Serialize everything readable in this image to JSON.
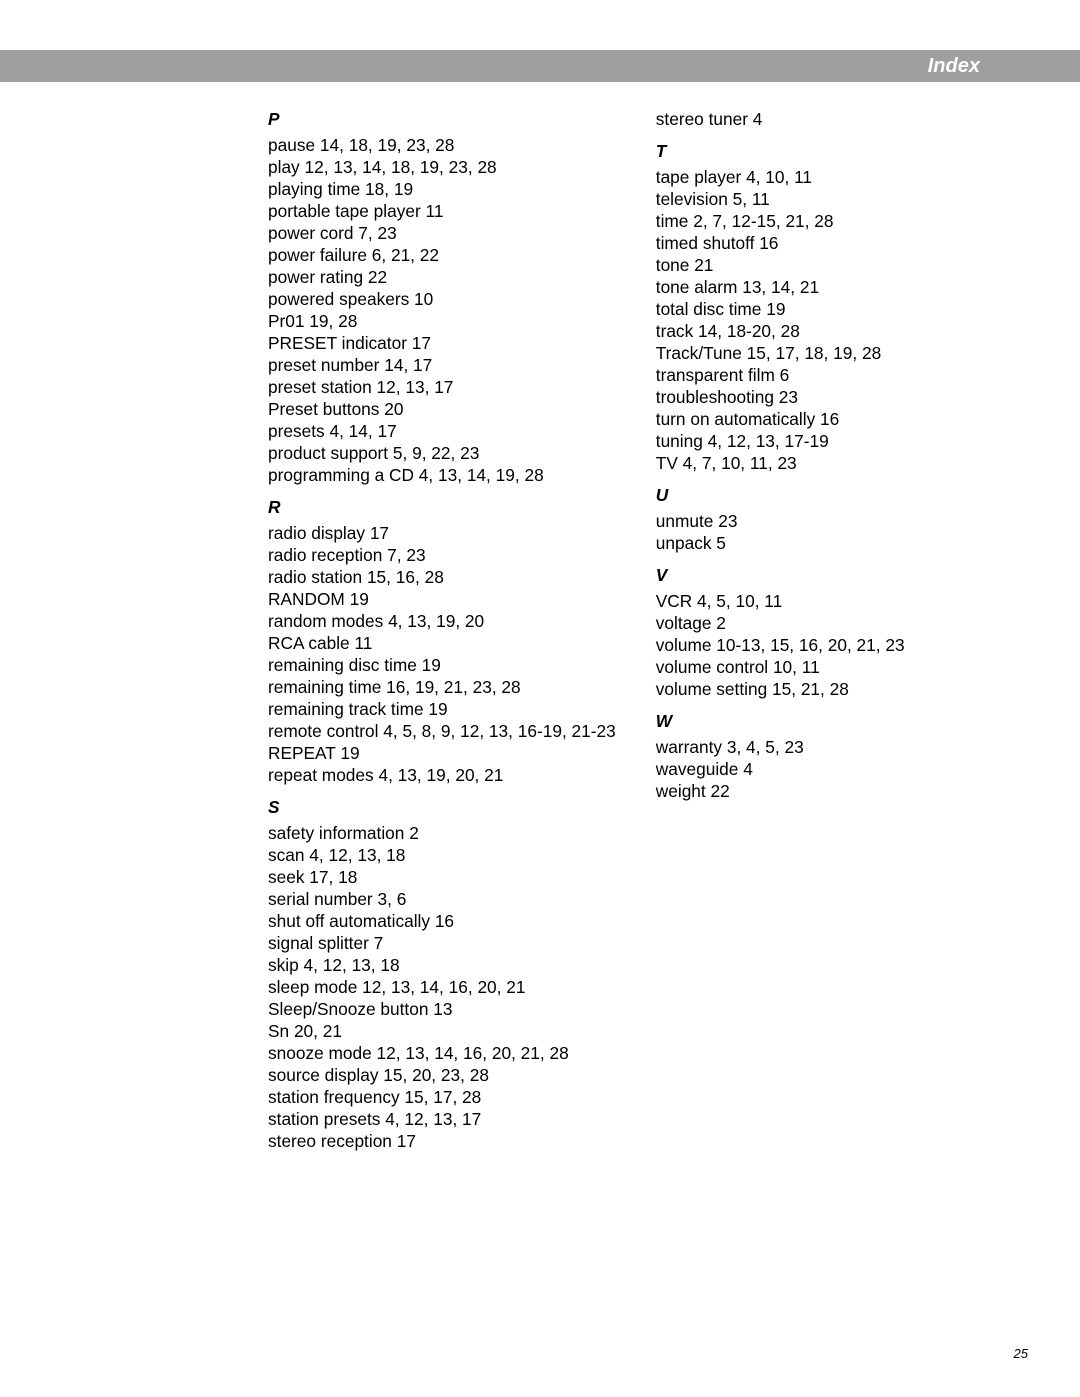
{
  "header": {
    "title": "Index"
  },
  "page_number": "25",
  "columns": [
    {
      "sections": [
        {
          "letter": "P",
          "entries": [
            "pause  14, 18, 19, 23, 28",
            "play  12, 13, 14, 18, 19, 23, 28",
            "playing time  18, 19",
            "portable tape player  11",
            "power cord  7, 23",
            "power failure  6, 21, 22",
            "power rating  22",
            "powered speakers  10",
            "Pr01  19, 28",
            "PRESET indicator  17",
            "preset number  14, 17",
            "preset station  12, 13, 17",
            "Preset buttons  20",
            "presets  4, 14, 17",
            "product support  5, 9, 22, 23",
            "programming a CD  4, 13, 14, 19, 28"
          ]
        },
        {
          "letter": "R",
          "entries": [
            "radio display  17",
            "radio reception  7, 23",
            "radio station  15, 16, 28",
            "RANDOM  19",
            "random modes  4, 13, 19, 20",
            "RCA cable  11",
            "remaining disc time  19",
            "remaining time  16, 19, 21, 23, 28",
            "remaining track time  19",
            "remote control  4, 5, 8, 9, 12, 13, 16-19, 21-23",
            "REPEAT  19",
            "repeat modes  4, 13, 19, 20, 21"
          ]
        },
        {
          "letter": "S",
          "entries": [
            "safety information  2",
            "scan  4, 12, 13, 18",
            "seek  17, 18",
            "serial number  3, 6",
            "shut off automatically  16",
            "signal splitter  7",
            "skip  4, 12, 13, 18",
            "sleep mode  12, 13, 14, 16, 20, 21",
            "Sleep/Snooze button  13",
            "Sn  20, 21",
            "snooze mode  12, 13, 14, 16, 20, 21, 28",
            "source display  15, 20, 23, 28",
            "station frequency  15, 17, 28",
            "station presets  4, 12, 13, 17",
            "stereo reception  17"
          ]
        }
      ]
    },
    {
      "lead_entries": [
        "stereo tuner  4"
      ],
      "sections": [
        {
          "letter": "T",
          "entries": [
            "tape player  4, 10, 11",
            "television  5, 11",
            "time  2, 7, 12-15, 21, 28",
            "timed shutoff  16",
            "tone  21",
            "tone alarm  13, 14, 21",
            "total disc time  19",
            "track  14, 18-20, 28",
            "Track/Tune  15, 17, 18, 19, 28",
            "transparent film  6",
            "troubleshooting  23",
            "turn on automatically  16",
            "tuning  4, 12, 13, 17-19",
            "TV  4, 7, 10, 11, 23"
          ]
        },
        {
          "letter": "U",
          "entries": [
            "unmute  23",
            "unpack  5"
          ]
        },
        {
          "letter": "V",
          "entries": [
            "VCR  4, 5, 10, 11",
            "voltage  2",
            "volume  10-13, 15, 16, 20, 21, 23",
            "volume control  10, 11",
            "volume setting  15, 21, 28"
          ]
        },
        {
          "letter": "W",
          "entries": [
            "warranty  3, 4, 5, 23",
            "waveguide  4",
            "weight  22"
          ]
        }
      ]
    }
  ]
}
